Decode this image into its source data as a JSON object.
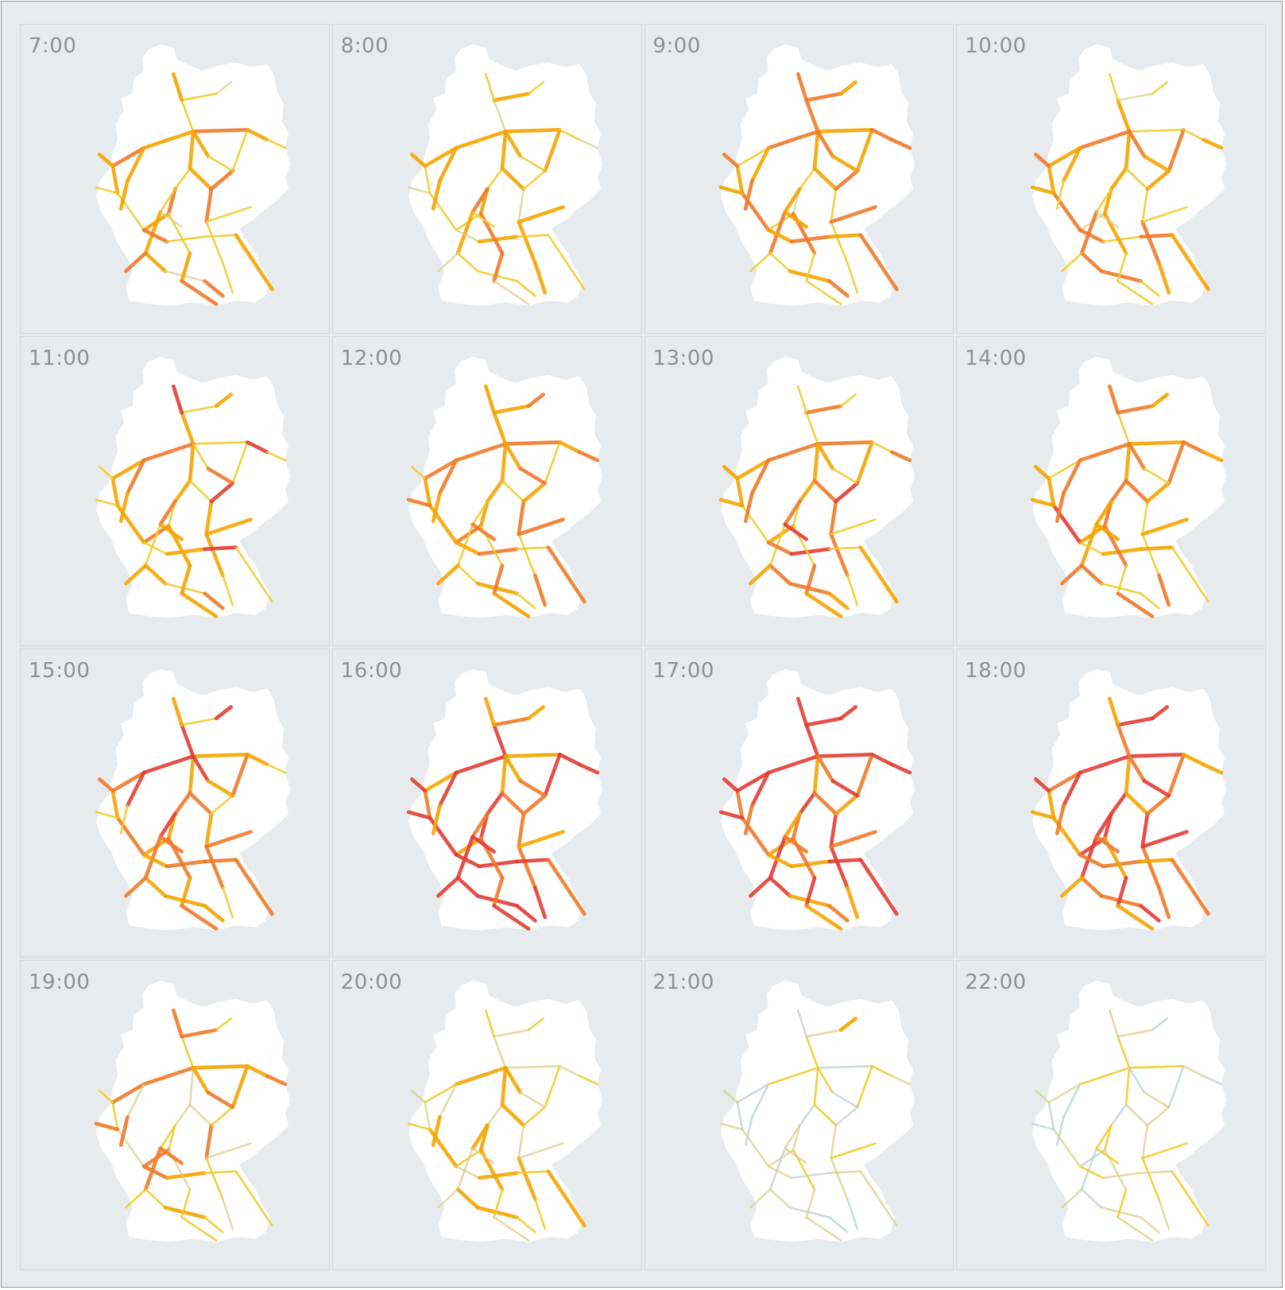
{
  "colors": {
    "background": "#e8ebee",
    "panel_border": "#d6dadd",
    "land": "#ffffff",
    "low_load": "#b9cdd3",
    "medium_low_load": "#d8cf88",
    "medium_load": "#f1cb2a",
    "high_load": "#f5a400",
    "very_high_load": "#f07a2a",
    "max_load": "#e23d34"
  },
  "panels": [
    {
      "time": "7:00",
      "intensity": 0.55
    },
    {
      "time": "8:00",
      "intensity": 0.5
    },
    {
      "time": "9:00",
      "intensity": 0.55
    },
    {
      "time": "10:00",
      "intensity": 0.55
    },
    {
      "time": "11:00",
      "intensity": 0.65
    },
    {
      "time": "12:00",
      "intensity": 0.62
    },
    {
      "time": "13:00",
      "intensity": 0.62
    },
    {
      "time": "14:00",
      "intensity": 0.66
    },
    {
      "time": "15:00",
      "intensity": 0.72
    },
    {
      "time": "16:00",
      "intensity": 0.88
    },
    {
      "time": "17:00",
      "intensity": 0.95
    },
    {
      "time": "18:00",
      "intensity": 0.85
    },
    {
      "time": "19:00",
      "intensity": 0.55
    },
    {
      "time": "20:00",
      "intensity": 0.35
    },
    {
      "time": "21:00",
      "intensity": 0.18
    },
    {
      "time": "22:00",
      "intensity": 0.1
    }
  ]
}
